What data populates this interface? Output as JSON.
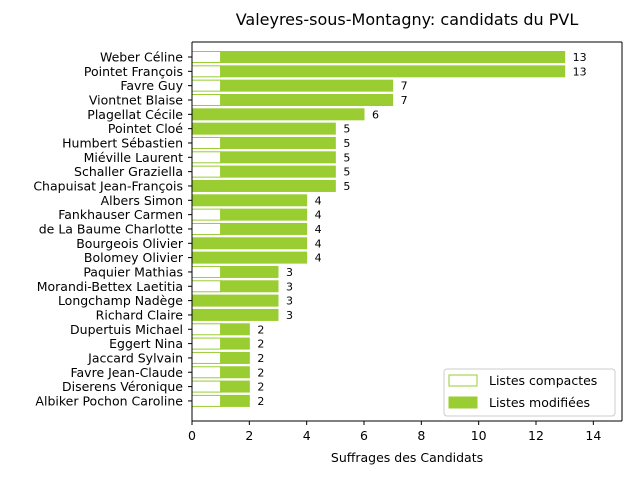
{
  "chart_data": {
    "type": "bar",
    "orientation": "horizontal",
    "stacked": true,
    "title": "Valeyres-sous-Montagny: candidats du PVL",
    "xlabel": "Suffrages des Candidats",
    "ylabel": "",
    "xlim": [
      0,
      15
    ],
    "x_ticks": [
      0,
      2,
      4,
      6,
      8,
      10,
      12,
      14
    ],
    "grid": false,
    "legend_position": "bottom-right",
    "categories": [
      "Weber Céline",
      "Pointet François",
      "Favre Guy",
      "Viontnet Blaise",
      "Plagellat Cécile",
      "Pointet Cloé",
      "Humbert Sébastien",
      "Miéville Laurent",
      "Schaller Graziella",
      "Chapuisat Jean-François",
      "Albers Simon",
      "Fankhauser Carmen",
      "de La Baume Charlotte",
      "Bourgeois Olivier",
      "Bolomey Olivier",
      "Paquier Mathias",
      "Morandi-Bettex Laetitia",
      "Longchamp Nadège",
      "Richard Claire",
      "Dupertuis Michael",
      "Eggert Nina",
      "Jaccard Sylvain",
      "Favre Jean-Claude",
      "Diserens Véronique",
      "Albiker Pochon Caroline"
    ],
    "series": [
      {
        "name": "Listes compactes",
        "color": "#9acd32",
        "fill": "#ffffff",
        "values": [
          1,
          1,
          1,
          1,
          0,
          0,
          1,
          1,
          1,
          0,
          0,
          1,
          1,
          0,
          0,
          1,
          1,
          0,
          0,
          1,
          1,
          1,
          1,
          1,
          1
        ]
      },
      {
        "name": "Listes modifiées",
        "color": "#9acd32",
        "fill": "#9acd32",
        "values": [
          12,
          12,
          6,
          6,
          6,
          5,
          4,
          4,
          4,
          5,
          4,
          3,
          3,
          4,
          4,
          2,
          2,
          3,
          3,
          1,
          1,
          1,
          1,
          1,
          1
        ]
      }
    ],
    "totals": [
      13,
      13,
      7,
      7,
      6,
      5,
      5,
      5,
      5,
      5,
      4,
      4,
      4,
      4,
      4,
      3,
      3,
      3,
      3,
      2,
      2,
      2,
      2,
      2,
      2
    ]
  }
}
